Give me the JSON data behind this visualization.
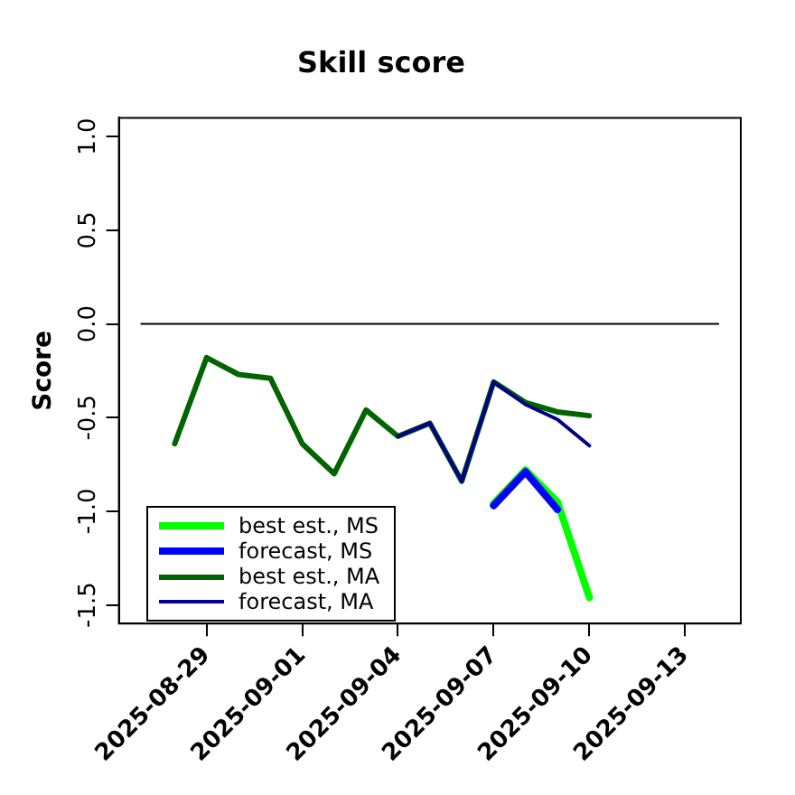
{
  "chart_data": {
    "type": "line",
    "title": "Skill score",
    "ylabel": "Score",
    "xlim": [
      "2025-08-26T06:00",
      "2025-09-14T18:00"
    ],
    "xticks": [
      "2025-08-29",
      "2025-09-01",
      "2025-09-04",
      "2025-09-07",
      "2025-09-10",
      "2025-09-13"
    ],
    "ylim": [
      -1.6,
      1.1
    ],
    "yticks": [
      -1.5,
      {
        "value": -1,
        "label": "-1.0"
      },
      -0.5,
      {
        "value": 0,
        "label": "0.0"
      },
      0.5,
      {
        "value": 1,
        "label": "1.0"
      }
    ],
    "legend": "bottom left",
    "line_style": "solid",
    "ref_lines": [
      {
        "axis": "y",
        "value": 0,
        "color": "#000000"
      }
    ],
    "series": [
      {
        "name": "best est., MS",
        "color": "#00ff00",
        "type": "line",
        "x": [
          "2025-09-07",
          "2025-09-08",
          "2025-09-09",
          "2025-09-10"
        ],
        "values": [
          -0.96,
          -0.78,
          -0.95,
          -1.46
        ]
      },
      {
        "name": "forecast, MS",
        "color": "#0000ff",
        "type": "line",
        "x": [
          "2025-09-07",
          "2025-09-08",
          "2025-09-09"
        ],
        "values": [
          -0.97,
          -0.79,
          -0.99
        ]
      },
      {
        "name": "best est., MA",
        "color": "#006400",
        "type": "line",
        "x": [
          "2025-08-28",
          "2025-08-29",
          "2025-08-30",
          "2025-08-31",
          "2025-09-01",
          "2025-09-02",
          "2025-09-03",
          "2025-09-04",
          "2025-09-05",
          "2025-09-06",
          "2025-09-07",
          "2025-09-08",
          "2025-09-09",
          "2025-09-10"
        ],
        "values": [
          -0.64,
          -0.18,
          -0.27,
          -0.29,
          -0.64,
          -0.8,
          -0.46,
          -0.6,
          -0.53,
          -0.84,
          -0.31,
          -0.42,
          -0.47,
          -0.49
        ]
      },
      {
        "name": "forecast, MA",
        "color": "#00008b",
        "type": "line",
        "x": [
          "2025-09-04",
          "2025-09-05",
          "2025-09-06",
          "2025-09-07",
          "2025-09-08",
          "2025-09-09",
          "2025-09-10"
        ],
        "values": [
          -0.6,
          -0.53,
          -0.84,
          -0.31,
          -0.43,
          -0.51,
          -0.65
        ]
      }
    ]
  }
}
